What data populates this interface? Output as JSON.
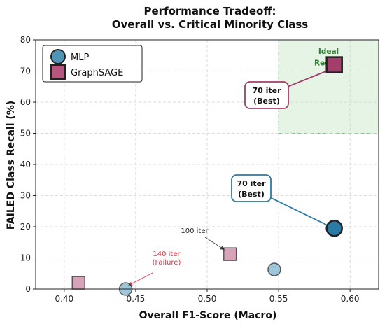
{
  "chart_data": {
    "type": "scatter",
    "title": "Performance Tradeoff:",
    "subtitle": "Overall vs. Critical Minority Class",
    "xlabel": "Overall F1-Score (Macro)",
    "ylabel": "FAILED Class Recall (%)",
    "xlim": [
      0.38,
      0.62
    ],
    "ylim": [
      0,
      80
    ],
    "xticks": [
      0.4,
      0.45,
      0.5,
      0.55,
      0.6
    ],
    "xtick_labels": [
      "0.40",
      "0.45",
      "0.50",
      "0.55",
      "0.60"
    ],
    "yticks": [
      0,
      10,
      20,
      30,
      40,
      50,
      60,
      70,
      80
    ],
    "ytick_labels": [
      "0",
      "10",
      "20",
      "30",
      "40",
      "50",
      "60",
      "70",
      "80"
    ],
    "grid": true,
    "legend_position": "top-left",
    "ideal_region": {
      "label": "Ideal Region",
      "x": [
        0.55,
        0.62
      ],
      "y": [
        50,
        80
      ],
      "color": "#2e7d32"
    },
    "series": [
      {
        "name": "MLP",
        "marker": "circle",
        "color": "#4e95b8",
        "highlight_color": "#2a7ba5",
        "points": [
          {
            "x": 0.443,
            "y": 0.0,
            "best": false
          },
          {
            "x": 0.547,
            "y": 6.3,
            "best": false
          },
          {
            "x": 0.589,
            "y": 19.5,
            "best": true
          }
        ]
      },
      {
        "name": "GraphSAGE",
        "marker": "square",
        "color": "#b5577f",
        "highlight_color": "#a23e6a",
        "points": [
          {
            "x": 0.41,
            "y": 2.0,
            "best": false
          },
          {
            "x": 0.516,
            "y": 11.2,
            "best": false
          },
          {
            "x": 0.589,
            "y": 72.0,
            "best": true
          }
        ]
      }
    ],
    "annotations": [
      {
        "line1": "70 iter",
        "line2": "(Best)",
        "series": "GraphSAGE",
        "x": 0.589,
        "y": 72.0,
        "style": "callout",
        "color": "#a23e6a"
      },
      {
        "line1": "70 iter",
        "line2": "(Best)",
        "series": "MLP",
        "x": 0.589,
        "y": 19.5,
        "style": "callout",
        "color": "#2a7ba5"
      },
      {
        "line1": "100 iter",
        "line2": "",
        "series": "GraphSAGE",
        "x": 0.516,
        "y": 11.2,
        "style": "note",
        "color": "#222222"
      },
      {
        "line1": "140 iter",
        "line2": "(Failure)",
        "series": "MLP",
        "x": 0.443,
        "y": 0.0,
        "style": "note",
        "color": "#e03040"
      }
    ]
  }
}
